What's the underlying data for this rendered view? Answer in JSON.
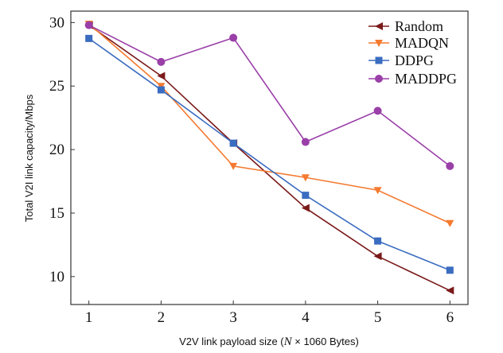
{
  "chart_data": {
    "type": "line",
    "xlabel_pre": "V2V link payload size (",
    "xlabel_var": "N",
    "xlabel_post": " × 1060 Bytes)",
    "ylabel": "Total V2I link capacity/Mbps",
    "x": [
      1,
      2,
      3,
      4,
      5,
      6
    ],
    "xlim": [
      0.75,
      6.25
    ],
    "ylim": [
      7.8,
      30.9
    ],
    "xticks": [
      "1",
      "2",
      "3",
      "4",
      "5",
      "6"
    ],
    "yticks": [
      "10",
      "15",
      "20",
      "25",
      "30"
    ],
    "grid": false,
    "legend_position": "top-right",
    "series": [
      {
        "name": "Random",
        "color": "#7b1a1a",
        "marker": "triangle-left",
        "values": [
          29.8,
          25.8,
          20.5,
          15.4,
          11.6,
          8.9
        ]
      },
      {
        "name": "MADQN",
        "color": "#f47a30",
        "marker": "triangle-down",
        "values": [
          29.9,
          25.0,
          18.7,
          17.8,
          16.8,
          14.2
        ]
      },
      {
        "name": "DDPG",
        "color": "#3a6cc0",
        "marker": "square",
        "values": [
          28.75,
          24.7,
          20.5,
          16.4,
          12.8,
          10.5
        ]
      },
      {
        "name": "MADDPG",
        "color": "#9a3fa8",
        "marker": "circle",
        "values": [
          29.8,
          26.9,
          28.8,
          20.6,
          23.05,
          18.7
        ]
      }
    ]
  }
}
